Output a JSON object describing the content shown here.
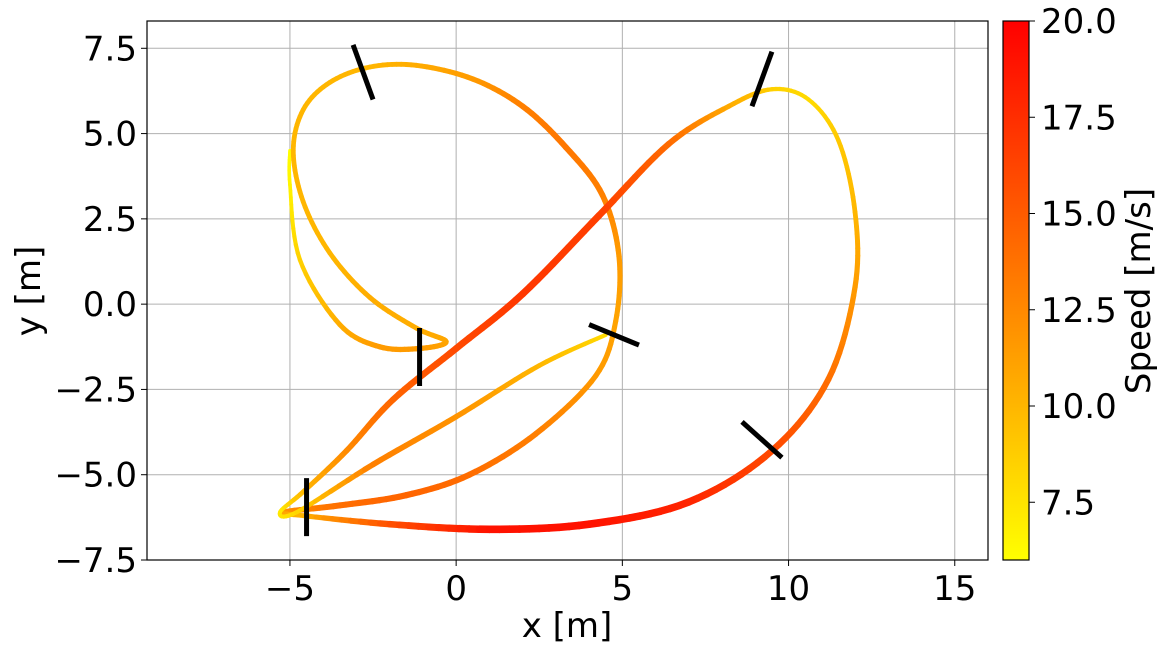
{
  "chart_data": {
    "type": "line",
    "xlabel": "x [m]",
    "ylabel": "y [m]",
    "xlim": [
      -9.3,
      16.0
    ],
    "ylim": [
      -7.5,
      8.3
    ],
    "xticks": [
      -5,
      0,
      5,
      10,
      15
    ],
    "xtick_labels": [
      "−5",
      "0",
      "5",
      "10",
      "15"
    ],
    "yticks": [
      -7.5,
      -5.0,
      -2.5,
      0.0,
      2.5,
      5.0,
      7.5
    ],
    "ytick_labels": [
      "−7.5",
      "−5.0",
      "−2.5",
      "0.0",
      "2.5",
      "5.0",
      "7.5"
    ],
    "grid": true,
    "colorbar": {
      "label": "Speed [m/s]",
      "range": [
        6.0,
        20.0
      ],
      "ticks": [
        7.5,
        10.0,
        12.5,
        15.0,
        17.5,
        20.0
      ],
      "tick_labels": [
        "7.5",
        "10.0",
        "12.5",
        "15.0",
        "17.5",
        "20.0"
      ],
      "colormap": "autumn_r",
      "color_low": "#ffff00",
      "color_high": "#ff0000"
    },
    "trajectory": {
      "x": [
        -5.0,
        -5.0,
        -4.7,
        -3.5,
        -2.3,
        -1.1,
        -0.3,
        -1.2,
        -2.6,
        -3.8,
        -4.6,
        -4.9,
        -4.6,
        -3.8,
        -2.6,
        -1.2,
        0.5,
        2.0,
        3.3,
        4.4,
        4.9,
        4.8,
        4.2,
        2.4,
        0.4,
        -1.5,
        -3.5,
        -5.2,
        -4.6,
        -2.0,
        1.0,
        4.0,
        7.0,
        9.5,
        11.2,
        12.0,
        12.0,
        11.5,
        10.6,
        9.5,
        8.2,
        6.4,
        4.3,
        2.0,
        0.0,
        -1.9,
        -3.3,
        -4.6,
        -5.3,
        -4.8,
        -2.5,
        0.0,
        2.5,
        4.5
      ],
      "y": [
        4.5,
        3.5,
        1.3,
        -0.6,
        -1.25,
        -1.3,
        -1.1,
        -0.7,
        0.2,
        1.5,
        3.0,
        4.5,
        5.7,
        6.5,
        6.95,
        7.0,
        6.6,
        5.8,
        4.6,
        3.2,
        1.4,
        -0.5,
        -2.1,
        -3.8,
        -5.0,
        -5.6,
        -5.9,
        -6.1,
        -6.2,
        -6.45,
        -6.6,
        -6.45,
        -5.8,
        -4.3,
        -2.2,
        0.5,
        2.7,
        4.8,
        6.0,
        6.3,
        5.8,
        4.7,
        2.6,
        0.3,
        -1.3,
        -2.8,
        -4.3,
        -5.5,
        -6.1,
        -6.1,
        -4.7,
        -3.3,
        -1.8,
        -0.9
      ],
      "speed": [
        6.0,
        6.5,
        8.5,
        10.5,
        11.5,
        11.5,
        11.0,
        10.5,
        10.5,
        10.0,
        10.0,
        10.0,
        10.0,
        10.0,
        10.0,
        10.5,
        11.5,
        13.0,
        13.5,
        13.0,
        11.5,
        11.0,
        11.5,
        13.0,
        14.0,
        14.5,
        14.0,
        12.0,
        10.0,
        15.5,
        19.0,
        19.0,
        18.0,
        16.0,
        14.0,
        11.5,
        10.0,
        9.0,
        8.0,
        8.5,
        10.5,
        14.0,
        16.5,
        17.0,
        16.0,
        14.5,
        12.5,
        10.0,
        7.0,
        8.0,
        13.0,
        12.0,
        10.0,
        8.0
      ]
    },
    "gates": [
      {
        "x": [
          -3.1,
          -2.5
        ],
        "y": [
          7.6,
          6.0
        ]
      },
      {
        "x": [
          8.9,
          9.5
        ],
        "y": [
          5.8,
          7.4
        ]
      },
      {
        "x": [
          4.0,
          5.5
        ],
        "y": [
          -0.6,
          -1.2
        ]
      },
      {
        "x": [
          -1.1,
          -1.1
        ],
        "y": [
          -0.7,
          -2.4
        ]
      },
      {
        "x": [
          8.6,
          9.8
        ],
        "y": [
          -3.45,
          -4.5
        ]
      },
      {
        "x": [
          -4.5,
          -4.5
        ],
        "y": [
          -5.1,
          -6.8
        ]
      }
    ]
  }
}
